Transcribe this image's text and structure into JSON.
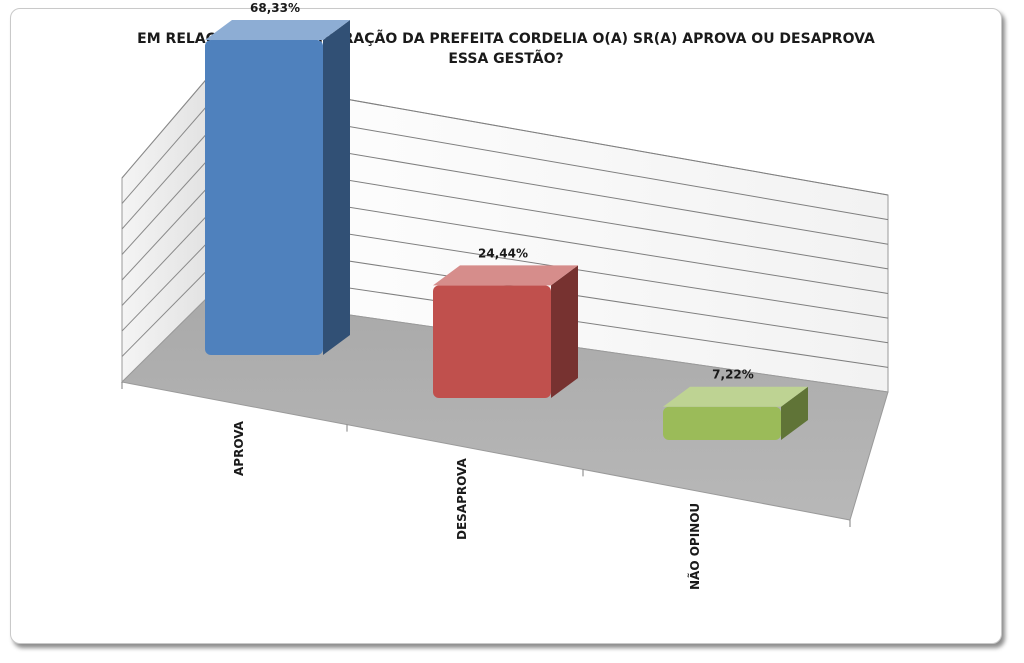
{
  "chart_data": {
    "type": "bar",
    "title_lines": [
      "EM RELAÇÃO A ADMINIISTRAÇÃO DA PREFEITA CORDELIA O(A) SR(A) APROVA OU DESAPROVA",
      "ESSA GESTÃO?"
    ],
    "categories": [
      "APROVA",
      "DESAPROVA",
      "NÃO OPINOU"
    ],
    "values": [
      68.33,
      24.44,
      7.22
    ],
    "value_labels": [
      "68,33%",
      "24,44%",
      "7,22%"
    ],
    "colors": [
      "#4f81bd",
      "#c0504d",
      "#9bbb59"
    ],
    "ylim": [
      0,
      80
    ],
    "grid": true,
    "legend": "none"
  }
}
